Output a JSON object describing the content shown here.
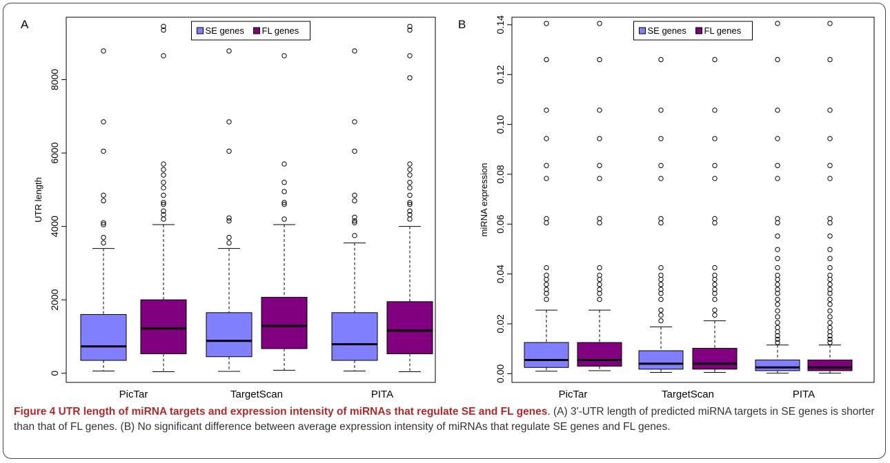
{
  "colors": {
    "se": "#8080ff",
    "fl": "#800080",
    "frame": "#444444",
    "caption_title": "#b02a2a",
    "caption_body": "#333333"
  },
  "legend_labels": [
    "SE genes",
    "FL genes"
  ],
  "caption": {
    "title": "Figure 4 UTR length of miRNA targets and expression intensity of miRNAs that regulate SE and FL genes",
    "body": ". (A) 3'-UTR length of predicted miRNA targets in SE genes is shorter than that of FL genes. (B) No significant difference between average expression intensity of miRNAs that regulate SE genes and FL genes."
  },
  "chart_data": [
    {
      "type": "box",
      "panel": "A",
      "ylabel": "UTR length",
      "xlabel": "",
      "categories": [
        "PicTar",
        "TargetScan",
        "PITA"
      ],
      "y_ticks": [
        0,
        2000,
        4000,
        6000,
        8000
      ],
      "y_tick_labels": [
        "0",
        "2000",
        "4000",
        "6000",
        "8000"
      ],
      "ylim": [
        -250,
        9700
      ],
      "legend": "top-center",
      "series": [
        {
          "name": "SE genes",
          "boxes": [
            {
              "whisker_low": 60,
              "q1": 350,
              "median": 730,
              "q3": 1600,
              "whisker_high": 3400,
              "outliers": [
                3550,
                3700,
                4050,
                4100,
                4700,
                4850,
                6050,
                6850,
                8780
              ]
            },
            {
              "whisker_low": 50,
              "q1": 450,
              "median": 880,
              "q3": 1650,
              "whisker_high": 3400,
              "outliers": [
                3550,
                3700,
                4150,
                4230,
                6050,
                6850,
                8780
              ]
            },
            {
              "whisker_low": 60,
              "q1": 350,
              "median": 790,
              "q3": 1650,
              "whisker_high": 3550,
              "outliers": [
                3750,
                4100,
                4150,
                4250,
                4700,
                4850,
                6050,
                6850,
                8780
              ]
            }
          ]
        },
        {
          "name": "FL genes",
          "boxes": [
            {
              "whisker_low": 40,
              "q1": 530,
              "median": 1220,
              "q3": 2000,
              "whisker_high": 4050,
              "outliers": [
                4200,
                4320,
                4420,
                4600,
                4650,
                4850,
                5050,
                5200,
                5400,
                5550,
                5700,
                8650,
                9350,
                9450
              ]
            },
            {
              "whisker_low": 80,
              "q1": 670,
              "median": 1290,
              "q3": 2070,
              "whisker_high": 4050,
              "outliers": [
                4200,
                4600,
                4650,
                4950,
                5200,
                5700,
                8650,
                9350,
                9450
              ]
            },
            {
              "whisker_low": 40,
              "q1": 530,
              "median": 1160,
              "q3": 1950,
              "whisker_high": 4000,
              "outliers": [
                4200,
                4320,
                4420,
                4600,
                4650,
                4850,
                5050,
                5200,
                5400,
                5550,
                5700,
                8050,
                8650,
                9350,
                9450
              ]
            }
          ]
        }
      ]
    },
    {
      "type": "box",
      "panel": "B",
      "ylabel": "miRNA expression",
      "xlabel": "",
      "categories": [
        "PicTar",
        "TargetScan",
        "PITA"
      ],
      "y_ticks": [
        0,
        0.02,
        0.04,
        0.06,
        0.08,
        0.1,
        0.12,
        0.14
      ],
      "y_tick_labels": [
        "0.00",
        "0.02",
        "0.04",
        "0.06",
        "0.08",
        "0.10",
        "0.12",
        "0.14"
      ],
      "ylim": [
        -0.0035,
        0.143
      ],
      "legend": "top-center",
      "series": [
        {
          "name": "SE genes",
          "boxes": [
            {
              "whisker_low": 0.001,
              "q1": 0.0025,
              "median": 0.0055,
              "q3": 0.0125,
              "whisker_high": 0.0255,
              "outliers": [
                0.0298,
                0.0322,
                0.0338,
                0.0358,
                0.0378,
                0.0395,
                0.0425,
                0.0605,
                0.0622,
                0.0783,
                0.0835,
                0.0943,
                0.1057,
                0.126,
                0.1405
              ]
            },
            {
              "whisker_low": 0.0005,
              "q1": 0.0018,
              "median": 0.004,
              "q3": 0.0092,
              "whisker_high": 0.0188,
              "outliers": [
                0.0212,
                0.0235,
                0.0255,
                0.0298,
                0.0322,
                0.0338,
                0.0358,
                0.0378,
                0.0395,
                0.0425,
                0.0605,
                0.0622,
                0.0783,
                0.0835,
                0.0943,
                0.1057,
                0.126,
                0.1405
              ]
            },
            {
              "whisker_low": 0.0002,
              "q1": 0.0012,
              "median": 0.0025,
              "q3": 0.0055,
              "whisker_high": 0.0115,
              "outliers": [
                0.0125,
                0.0138,
                0.0152,
                0.0168,
                0.0185,
                0.0205,
                0.0228,
                0.0252,
                0.0278,
                0.0298,
                0.0322,
                0.0338,
                0.0358,
                0.0378,
                0.0395,
                0.0425,
                0.0462,
                0.0498,
                0.0552,
                0.0605,
                0.0622,
                0.0783,
                0.0835,
                0.0943,
                0.1057,
                0.126,
                0.1405
              ]
            }
          ]
        },
        {
          "name": "FL genes",
          "boxes": [
            {
              "whisker_low": 0.0012,
              "q1": 0.003,
              "median": 0.0055,
              "q3": 0.0125,
              "whisker_high": 0.0255,
              "outliers": [
                0.0298,
                0.0322,
                0.0338,
                0.0358,
                0.0378,
                0.0395,
                0.0425,
                0.0605,
                0.0622,
                0.0783,
                0.0835,
                0.0943,
                0.1057,
                0.126,
                0.1405
              ]
            },
            {
              "whisker_low": 0.0005,
              "q1": 0.0018,
              "median": 0.004,
              "q3": 0.0102,
              "whisker_high": 0.0212,
              "outliers": [
                0.0235,
                0.0255,
                0.0298,
                0.0322,
                0.0338,
                0.0358,
                0.0378,
                0.0395,
                0.0425,
                0.0605,
                0.0622,
                0.0783,
                0.0835,
                0.0943,
                0.1057,
                0.126,
                0.1405
              ]
            },
            {
              "whisker_low": 0.0002,
              "q1": 0.0012,
              "median": 0.0025,
              "q3": 0.0055,
              "whisker_high": 0.0115,
              "outliers": [
                0.0125,
                0.0138,
                0.0152,
                0.0168,
                0.0185,
                0.0205,
                0.0228,
                0.0252,
                0.0278,
                0.0298,
                0.0322,
                0.0338,
                0.0358,
                0.0378,
                0.0395,
                0.0425,
                0.0462,
                0.0498,
                0.0552,
                0.0605,
                0.0622,
                0.0783,
                0.0835,
                0.0943,
                0.1057,
                0.126,
                0.1405
              ]
            }
          ]
        }
      ]
    }
  ]
}
